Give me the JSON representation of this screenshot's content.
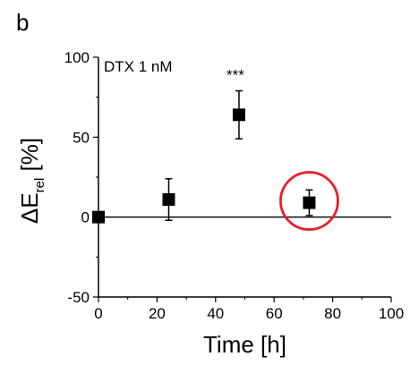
{
  "chart_data": {
    "type": "scatter",
    "panel_label": "b",
    "annotation": "DTX 1 nM",
    "significance": "***",
    "xlabel": "Time [h]",
    "ylabel": {
      "prefix": "ΔE",
      "subscript": "rel",
      "suffix": " [%]"
    },
    "xlim": [
      0,
      100
    ],
    "ylim": [
      -50,
      100
    ],
    "xticks": [
      0,
      20,
      40,
      60,
      80,
      100
    ],
    "yticks": [
      -50,
      0,
      50,
      100
    ],
    "xtick_labels": [
      "0",
      "20",
      "40",
      "60",
      "80",
      "100"
    ],
    "ytick_labels": [
      "-50",
      "0",
      "50",
      "100"
    ],
    "reference_line_y": 0,
    "x": [
      0,
      24,
      48,
      72
    ],
    "y": [
      0,
      11,
      64,
      9
    ],
    "error": [
      0,
      13,
      15,
      8
    ],
    "highlight_index": 3,
    "colors": {
      "marker": "#000000",
      "highlight": "#e8202a",
      "axis": "#000000"
    }
  }
}
